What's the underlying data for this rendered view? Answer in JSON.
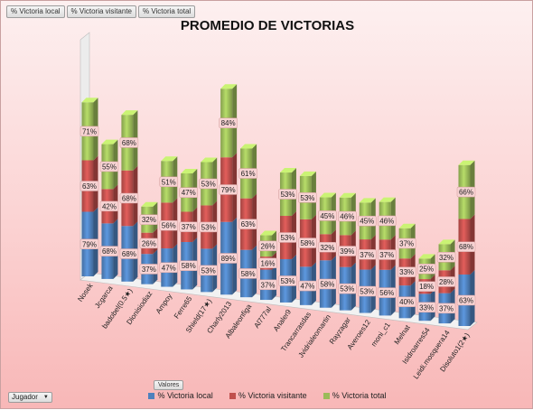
{
  "field_buttons": [
    "% Victoria local",
    "% Victoria visitante",
    "% Victoria total"
  ],
  "valores_button": "Valores",
  "filter": {
    "label": "Jugador",
    "icon": "dropdown-arrow-icon"
  },
  "colors": {
    "local": "#4f81bd",
    "visitante": "#c0504d",
    "total": "#9bbb59"
  },
  "chart_data": {
    "type": "bar",
    "stacked": true,
    "title": "PROMEDIO DE VICTORIAS",
    "categories": [
      "Nosek",
      "Jcgarca",
      "badobel(0.5★)",
      "Dionisiodiaz",
      "Ampoy",
      "Ferre65",
      "Shield(17★)",
      "Charly2013",
      "Albaleonfiga",
      "Al777al",
      "Analer9",
      "Trancarrasdas",
      "Jvidrialeomartin",
      "Rayzagar",
      "Averoes12",
      "moni_c1",
      "Melnat",
      "Isidroarres54",
      "Leidi.mosquera14",
      "Disoluto1(2★)"
    ],
    "series": [
      {
        "name": "% Victoria local",
        "values": [
          79,
          68,
          68,
          37,
          47,
          58,
          53,
          89,
          58,
          37,
          53,
          47,
          58,
          53,
          53,
          56,
          40,
          33,
          37,
          63
        ]
      },
      {
        "name": "% Victoria visitante",
        "values": [
          63,
          42,
          68,
          26,
          56,
          37,
          53,
          79,
          63,
          16,
          53,
          58,
          32,
          39,
          37,
          37,
          33,
          18,
          28,
          68
        ]
      },
      {
        "name": "% Victoria total",
        "values": [
          71,
          55,
          68,
          32,
          51,
          47,
          53,
          84,
          61,
          26,
          53,
          53,
          45,
          46,
          45,
          46,
          37,
          25,
          32,
          66
        ]
      }
    ],
    "value_suffix": "%",
    "legend_position": "bottom",
    "three_d": true
  }
}
